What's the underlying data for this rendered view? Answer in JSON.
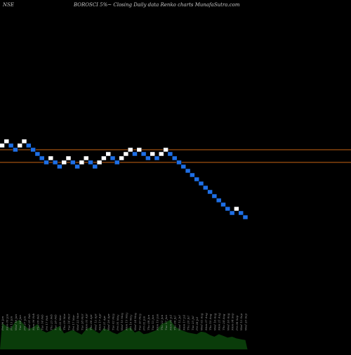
{
  "header": {
    "exchange": "NSE",
    "title": "BOROSCI 5%~  Closing Daily data  Renko  charts MunafaSutra.com"
  },
  "chart_data": {
    "type": "renko",
    "title": "BOROSCI 5%~  Closing Daily data  Renko  charts MunafaSutra.com",
    "brick_up_color": "#ffffff",
    "brick_down_color": "#1e6fe6",
    "line_color": "#c86414",
    "volume_color": "#0a3c0a",
    "brick_size": 5,
    "horizontal_lines": [
      202.5,
      187.5
    ],
    "y_range": [
      120,
      240
    ],
    "bricks": [
      {
        "dir": "up",
        "value": 207.5
      },
      {
        "dir": "up",
        "value": 212.5
      },
      {
        "dir": "down",
        "value": 207.5
      },
      {
        "dir": "down",
        "value": 202.5
      },
      {
        "dir": "up",
        "value": 207.5
      },
      {
        "dir": "up",
        "value": 212.5
      },
      {
        "dir": "down",
        "value": 207.5
      },
      {
        "dir": "down",
        "value": 202.5
      },
      {
        "dir": "down",
        "value": 197.5
      },
      {
        "dir": "down",
        "value": 192.5
      },
      {
        "dir": "down",
        "value": 187.5
      },
      {
        "dir": "up",
        "value": 192.5
      },
      {
        "dir": "down",
        "value": 187.5
      },
      {
        "dir": "down",
        "value": 182.5
      },
      {
        "dir": "up",
        "value": 187.5
      },
      {
        "dir": "up",
        "value": 192.5
      },
      {
        "dir": "down",
        "value": 187.5
      },
      {
        "dir": "down",
        "value": 182.5
      },
      {
        "dir": "up",
        "value": 187.5
      },
      {
        "dir": "up",
        "value": 192.5
      },
      {
        "dir": "down",
        "value": 187.5
      },
      {
        "dir": "down",
        "value": 182.5
      },
      {
        "dir": "up",
        "value": 187.5
      },
      {
        "dir": "up",
        "value": 192.5
      },
      {
        "dir": "up",
        "value": 197.5
      },
      {
        "dir": "down",
        "value": 192.5
      },
      {
        "dir": "down",
        "value": 187.5
      },
      {
        "dir": "up",
        "value": 192.5
      },
      {
        "dir": "up",
        "value": 197.5
      },
      {
        "dir": "up",
        "value": 202.5
      },
      {
        "dir": "down",
        "value": 197.5
      },
      {
        "dir": "up",
        "value": 202.5
      },
      {
        "dir": "down",
        "value": 197.5
      },
      {
        "dir": "down",
        "value": 192.5
      },
      {
        "dir": "up",
        "value": 197.5
      },
      {
        "dir": "down",
        "value": 192.5
      },
      {
        "dir": "up",
        "value": 197.5
      },
      {
        "dir": "up",
        "value": 202.5
      },
      {
        "dir": "down",
        "value": 197.5
      },
      {
        "dir": "down",
        "value": 192.5
      },
      {
        "dir": "down",
        "value": 187.5
      },
      {
        "dir": "down",
        "value": 182.5
      },
      {
        "dir": "down",
        "value": 177.5
      },
      {
        "dir": "down",
        "value": 172.5
      },
      {
        "dir": "down",
        "value": 167.5
      },
      {
        "dir": "down",
        "value": 162.5
      },
      {
        "dir": "down",
        "value": 157.5
      },
      {
        "dir": "down",
        "value": 152.5
      },
      {
        "dir": "down",
        "value": 147.5
      },
      {
        "dir": "down",
        "value": 142.5
      },
      {
        "dir": "down",
        "value": 137.5
      },
      {
        "dir": "down",
        "value": 132.5
      },
      {
        "dir": "down",
        "value": 127.5
      },
      {
        "dir": "up",
        "value": 132.5
      },
      {
        "dir": "down",
        "value": 127.5
      },
      {
        "dir": "down",
        "value": 122.5
      }
    ],
    "date_labels": [
      "Fri 06 Jan",
      "Mon 09 Jan",
      "Fri 13 Jan",
      "Wed 18 Jan",
      "Tue 24 Jan",
      "Fri 27 Jan",
      "Wed 01 Feb",
      "Mon 06 Feb",
      "Thu 09 Feb",
      "Tue 14 Feb",
      "Fri 17 Feb",
      "Thu 23 Feb",
      "Tue 28 Feb",
      "Fri 03 Mar",
      "Thu 09 Mar",
      "Tue 14 Mar",
      "Fri 17 Mar",
      "Wed 22 Mar",
      "Tue 28 Mar",
      "Mon 03 Apr",
      "Thu 06 Apr",
      "Wed 12 Apr",
      "Mon 17 Apr",
      "Fri 21 Apr",
      "Wed 26 Apr",
      "Tue 02 May",
      "Fri 05 May",
      "Wed 10 May",
      "Mon 15 May",
      "Fri 19 May",
      "Wed 24 May",
      "Tue 30 May",
      "Fri 02 Jun",
      "Thu 08 Jun",
      "Tue 13 Jun",
      "Mon 19 Jun",
      "Thu 22 Jun",
      "Tue 27 Jun",
      "Mon 03 Jul",
      "Thu 06 Jul",
      "Wed 12 Jul",
      "Mon 17 Jul",
      "Thu 20 Jul",
      "Tue 25 Jul",
      "Fri 28 Jul",
      "Wed 02 Aug",
      "Mon 07 Aug",
      "Thu 10 Aug",
      "Wed 16 Aug",
      "Mon 21 Aug",
      "Thu 24 Aug",
      "Wed 30 Aug",
      "Mon 04 Sep",
      "Fri 08 Sep",
      "Wed 13 Sep",
      "Wed 20 Sep"
    ],
    "volume": [
      62,
      55,
      50,
      66,
      70,
      58,
      48,
      52,
      60,
      45,
      40,
      44,
      50,
      55,
      38,
      42,
      46,
      40,
      35,
      48,
      52,
      44,
      38,
      50,
      46,
      40,
      36,
      42,
      48,
      52,
      40,
      44,
      36,
      38,
      42,
      46,
      60,
      64,
      70,
      55,
      48,
      44,
      40,
      38,
      36,
      42,
      40,
      34,
      30,
      36,
      32,
      28,
      30,
      26,
      24,
      22
    ]
  }
}
